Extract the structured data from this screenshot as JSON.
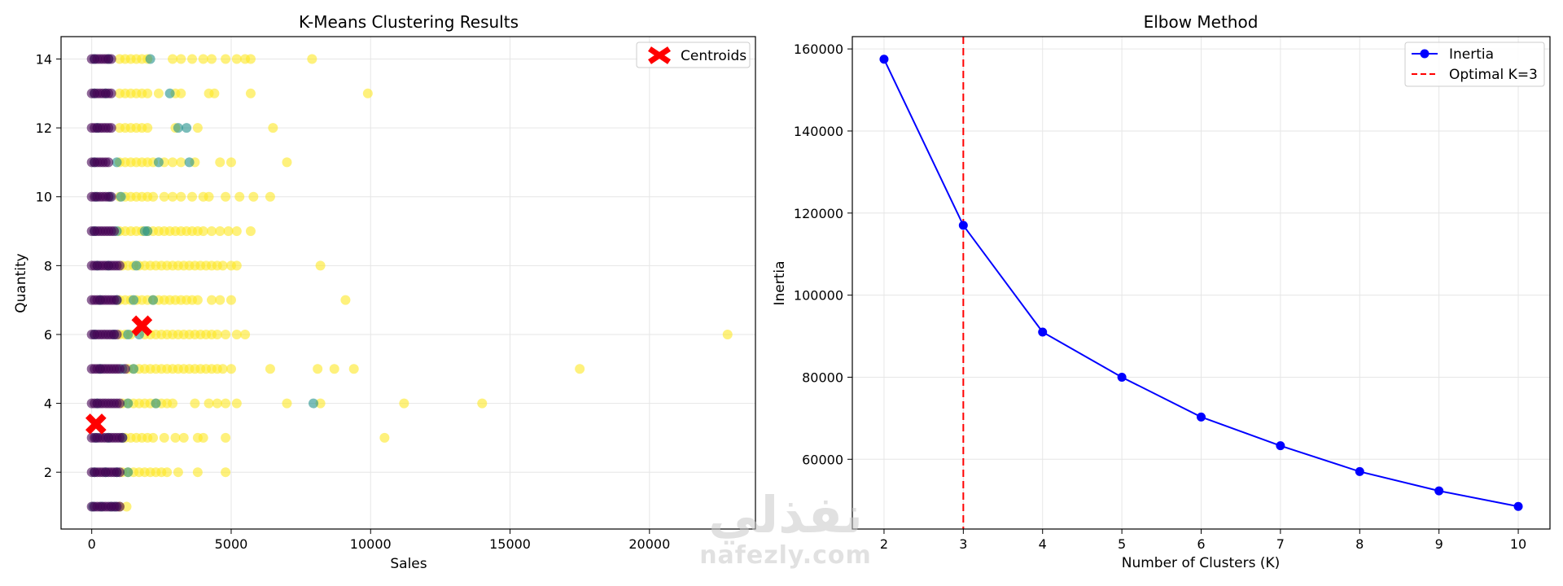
{
  "chart_data": [
    {
      "type": "scatter",
      "title": "K-Means Clustering Results",
      "xlabel": "Sales",
      "ylabel": "Quantity",
      "xlim": [
        -1100,
        23800
      ],
      "ylim": [
        0.35,
        14.65
      ],
      "xticks": [
        0,
        5000,
        10000,
        15000,
        20000
      ],
      "yticks": [
        2,
        4,
        6,
        8,
        10,
        12,
        14
      ],
      "grid": true,
      "legend_position": "top-right",
      "legend": [
        "Centroids"
      ],
      "cluster_colors": [
        "#440154",
        "#21918c",
        "#fde725"
      ],
      "centroid_color": "#ff0000",
      "clusters": [
        {
          "cluster": 0,
          "rows": [
            {
              "quantity": 1,
              "sales": [
                0,
                100,
                200,
                300,
                400,
                500,
                600,
                700,
                800,
                900,
                1000
              ]
            },
            {
              "quantity": 2,
              "sales": [
                0,
                100,
                200,
                300,
                400,
                500,
                600,
                700,
                800,
                900,
                1000
              ]
            },
            {
              "quantity": 3,
              "sales": [
                0,
                100,
                200,
                300,
                400,
                500,
                600,
                700,
                800,
                900,
                1000,
                1100
              ]
            },
            {
              "quantity": 4,
              "sales": [
                0,
                100,
                200,
                300,
                400,
                500,
                600,
                700,
                800,
                900,
                1000
              ]
            },
            {
              "quantity": 5,
              "sales": [
                0,
                100,
                200,
                300,
                400,
                500,
                600,
                700,
                800,
                900,
                1000,
                1200
              ]
            },
            {
              "quantity": 6,
              "sales": [
                0,
                100,
                200,
                300,
                400,
                500,
                600,
                700,
                800,
                900
              ]
            },
            {
              "quantity": 7,
              "sales": [
                0,
                100,
                200,
                300,
                400,
                500,
                600,
                700,
                800,
                900
              ]
            },
            {
              "quantity": 8,
              "sales": [
                0,
                100,
                200,
                300,
                400,
                500,
                600,
                700,
                800,
                900,
                1000
              ]
            },
            {
              "quantity": 9,
              "sales": [
                0,
                100,
                200,
                300,
                400,
                500,
                600,
                700,
                800
              ]
            },
            {
              "quantity": 10,
              "sales": [
                0,
                100,
                200,
                300,
                400,
                500,
                600,
                700
              ]
            },
            {
              "quantity": 11,
              "sales": [
                0,
                100,
                200,
                300,
                400,
                500,
                600
              ]
            },
            {
              "quantity": 12,
              "sales": [
                0,
                100,
                200,
                300,
                400,
                500,
                600,
                700
              ]
            },
            {
              "quantity": 13,
              "sales": [
                0,
                100,
                200,
                300,
                400,
                500,
                600,
                700
              ]
            },
            {
              "quantity": 14,
              "sales": [
                0,
                100,
                200,
                300,
                400,
                500,
                600,
                700
              ]
            }
          ]
        },
        {
          "cluster": 1,
          "rows": [
            {
              "quantity": 1,
              "sales": [
                50,
                350,
                700,
                850
              ]
            },
            {
              "quantity": 2,
              "sales": [
                100,
                500,
                900,
                1300
              ]
            },
            {
              "quantity": 3,
              "sales": [
                150,
                600,
                1100
              ]
            },
            {
              "quantity": 4,
              "sales": [
                200,
                1300,
                2300,
                7950
              ]
            },
            {
              "quantity": 5,
              "sales": [
                300,
                1100,
                1500
              ]
            },
            {
              "quantity": 6,
              "sales": [
                100,
                800,
                1300,
                1700
              ]
            },
            {
              "quantity": 7,
              "sales": [
                300,
                900,
                1500,
                2200
              ]
            },
            {
              "quantity": 8,
              "sales": [
                200,
                600,
                1600
              ]
            },
            {
              "quantity": 9,
              "sales": [
                100,
                900,
                1900,
                2000
              ]
            },
            {
              "quantity": 10,
              "sales": [
                150,
                650,
                1050
              ]
            },
            {
              "quantity": 11,
              "sales": [
                100,
                900,
                2400,
                3500
              ]
            },
            {
              "quantity": 12,
              "sales": [
                200,
                3100,
                3400
              ]
            },
            {
              "quantity": 13,
              "sales": [
                100,
                500,
                2800
              ]
            },
            {
              "quantity": 14,
              "sales": [
                100,
                600,
                2100
              ]
            }
          ]
        },
        {
          "cluster": 2,
          "rows": [
            {
              "quantity": 1,
              "sales": [
                1000,
                1250
              ]
            },
            {
              "quantity": 2,
              "sales": [
                1100,
                1300,
                1500,
                1700,
                1900,
                2100,
                2300,
                2500,
                2700,
                3100,
                3800,
                4800
              ]
            },
            {
              "quantity": 3,
              "sales": [
                1200,
                1400,
                1600,
                1800,
                2000,
                2200,
                2600,
                3000,
                3300,
                3800,
                4000,
                4800,
                10500
              ]
            },
            {
              "quantity": 4,
              "sales": [
                1100,
                1300,
                1500,
                1700,
                1900,
                2100,
                2300,
                2500,
                2700,
                2900,
                3700,
                4200,
                4500,
                4800,
                5200,
                7000,
                8200,
                11200,
                14000
              ]
            },
            {
              "quantity": 5,
              "sales": [
                1300,
                1500,
                1700,
                1900,
                2100,
                2300,
                2500,
                2700,
                2900,
                3100,
                3300,
                3500,
                3700,
                3900,
                4100,
                4300,
                4500,
                4700,
                5000,
                6400,
                8100,
                8700,
                9400,
                17500
              ]
            },
            {
              "quantity": 6,
              "sales": [
                1000,
                1200,
                1400,
                1900,
                2100,
                2300,
                2500,
                2700,
                2900,
                3100,
                3300,
                3500,
                3700,
                3900,
                4100,
                4300,
                4500,
                4800,
                5200,
                5500,
                22800
              ]
            },
            {
              "quantity": 7,
              "sales": [
                1000,
                1200,
                1400,
                1600,
                1800,
                2000,
                2200,
                2400,
                2600,
                2800,
                3000,
                3200,
                3400,
                3600,
                3800,
                4300,
                4600,
                5000,
                9100
              ]
            },
            {
              "quantity": 8,
              "sales": [
                1100,
                1300,
                1500,
                1700,
                1900,
                2100,
                2300,
                2500,
                2700,
                2900,
                3100,
                3300,
                3500,
                3700,
                3900,
                4100,
                4300,
                4500,
                4700,
                5000,
                5200,
                8200
              ]
            },
            {
              "quantity": 9,
              "sales": [
                1000,
                1200,
                1400,
                1600,
                1800,
                2000,
                2200,
                2400,
                2600,
                2800,
                3000,
                3200,
                3400,
                3600,
                3800,
                4000,
                4300,
                4600,
                4900,
                5200,
                5700
              ]
            },
            {
              "quantity": 10,
              "sales": [
                1000,
                1200,
                1400,
                1600,
                1800,
                2000,
                2200,
                2600,
                2900,
                3200,
                3600,
                4000,
                4200,
                4800,
                5300,
                5800,
                6400
              ]
            },
            {
              "quantity": 11,
              "sales": [
                1000,
                1200,
                1400,
                1600,
                1800,
                2000,
                2200,
                2600,
                2900,
                3200,
                3700,
                4600,
                5000,
                7000
              ]
            },
            {
              "quantity": 12,
              "sales": [
                1000,
                1200,
                1400,
                1600,
                1800,
                2000,
                3000,
                3800,
                6500
              ]
            },
            {
              "quantity": 13,
              "sales": [
                1000,
                1200,
                1400,
                1600,
                1800,
                2000,
                2400,
                3000,
                3200,
                4200,
                4400,
                5700,
                9900
              ]
            },
            {
              "quantity": 14,
              "sales": [
                1000,
                1200,
                1400,
                1600,
                1800,
                2000,
                2900,
                3200,
                3600,
                4000,
                4300,
                4800,
                5200,
                5500,
                5700,
                7900
              ]
            }
          ]
        }
      ],
      "centroids": [
        {
          "sales": 150,
          "quantity": 3.4
        },
        {
          "sales": 1800,
          "quantity": 6.25
        }
      ]
    },
    {
      "type": "line",
      "title": "Elbow Method",
      "xlabel": "Number of Clusters (K)",
      "ylabel": "Inertia",
      "xlim": [
        1.6,
        10.4
      ],
      "ylim": [
        43000,
        163000
      ],
      "xticks": [
        2,
        3,
        4,
        5,
        6,
        7,
        8,
        9,
        10
      ],
      "yticks": [
        60000,
        80000,
        100000,
        120000,
        140000,
        160000
      ],
      "grid": true,
      "legend_position": "top-right",
      "series": [
        {
          "name": "Inertia",
          "color": "#0000ff",
          "x": [
            2,
            3,
            4,
            5,
            6,
            7,
            8,
            9,
            10
          ],
          "values": [
            157500,
            117000,
            91000,
            80000,
            70300,
            63300,
            57000,
            52300,
            48500
          ]
        }
      ],
      "reference_line": {
        "name": "Optimal K=3",
        "x": 3,
        "color": "#ff0000",
        "style": "dashed"
      }
    }
  ],
  "watermark": {
    "arabic": "نفذلي",
    "latin": "nafezly.com"
  }
}
